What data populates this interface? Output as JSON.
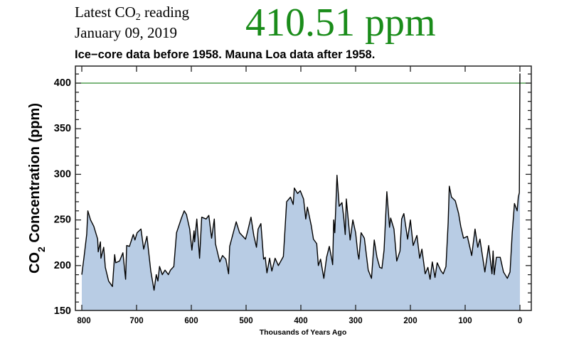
{
  "header": {
    "latest_parts": [
      "Latest CO",
      "2",
      " reading"
    ],
    "date": "January 09, 2019",
    "reading": "410.51 ppm",
    "reading_color": "#1a8c1a",
    "subtitle": "Ice−core data before 1958. Mauna Loa data after 1958."
  },
  "chart_data": {
    "type": "area",
    "title": "",
    "xlabel": "Thousands of Years Ago",
    "ylabel_parts": [
      "CO",
      "2",
      " Concentration (ppm)"
    ],
    "xlim": [
      800,
      0
    ],
    "ylim": [
      150,
      419
    ],
    "x_reversed": true,
    "x_ticks": [
      "800",
      "700",
      "600",
      "500",
      "400",
      "300",
      "200",
      "100",
      "0"
    ],
    "y_ticks": [
      "150",
      "200",
      "250",
      "300",
      "350",
      "400"
    ],
    "grid": false,
    "reference_line": {
      "y": 400,
      "color": "#2e8b2e"
    },
    "fill_color": "#b8cce4",
    "line_color": "#000000",
    "series": [
      {
        "x": [
          800,
          796,
          791,
          789,
          784,
          778,
          771,
          770,
          766,
          765,
          760,
          757,
          751,
          744,
          740,
          738,
          731,
          725,
          720,
          718,
          713,
          706,
          703,
          699,
          692,
          687,
          681,
          674,
          668,
          664,
          661,
          658,
          653,
          648,
          642,
          638,
          632,
          627,
          618,
          613,
          609,
          603,
          599,
          595,
          594,
          590,
          585,
          581,
          573,
          568,
          563,
          558,
          556,
          548,
          543,
          537,
          532,
          530,
          518,
          512,
          501,
          497,
          491,
          486,
          481,
          478,
          473,
          468,
          465,
          462,
          457,
          453,
          447,
          441,
          432,
          430,
          426,
          419,
          414,
          412,
          406,
          401,
          395,
          391,
          388,
          381,
          377,
          371,
          368,
          364,
          358,
          353,
          348,
          343,
          342,
          340,
          338,
          334,
          330,
          325,
          322,
          319,
          317,
          310,
          305,
          300,
          296,
          294,
          290,
          284,
          277,
          271,
          266,
          261,
          256,
          252,
          248,
          243,
          238,
          236,
          230,
          225,
          219,
          216,
          212,
          205,
          200,
          195,
          188,
          183,
          179,
          173,
          168,
          164,
          160,
          155,
          151,
          144,
          140,
          135,
          131,
          129,
          125,
          118,
          112,
          108,
          103,
          96,
          88,
          82,
          77,
          73,
          64,
          57,
          51,
          49,
          47,
          43,
          36,
          30,
          23,
          18,
          14,
          10,
          5,
          3,
          1,
          0
        ],
        "y": [
          190,
          209,
          234,
          260,
          250,
          243,
          229,
          215,
          226,
          208,
          220,
          198,
          183,
          177,
          212,
          203,
          205,
          214,
          185,
          222,
          221,
          234,
          228,
          236,
          240,
          218,
          232,
          194,
          173,
          190,
          183,
          199,
          190,
          195,
          190,
          195,
          199,
          236,
          252,
          260,
          256,
          240,
          217,
          238,
          226,
          251,
          208,
          253,
          251,
          255,
          230,
          251,
          224,
          204,
          211,
          207,
          191,
          221,
          248,
          236,
          229,
          238,
          253,
          233,
          220,
          240,
          246,
          207,
          209,
          192,
          208,
          194,
          208,
          200,
          210,
          229,
          270,
          275,
          267,
          285,
          279,
          282,
          273,
          251,
          264,
          244,
          229,
          224,
          200,
          207,
          186,
          209,
          221,
          205,
          201,
          250,
          236,
          299,
          265,
          269,
          254,
          234,
          273,
          228,
          250,
          236,
          213,
          207,
          236,
          230,
          195,
          186,
          228,
          209,
          198,
          197,
          217,
          281,
          242,
          252,
          240,
          205,
          216,
          251,
          257,
          229,
          250,
          222,
          233,
          208,
          218,
          191,
          198,
          185,
          204,
          187,
          203,
          194,
          191,
          199,
          247,
          287,
          275,
          271,
          257,
          243,
          230,
          232,
          211,
          240,
          220,
          229,
          193,
          222,
          191,
          216,
          190,
          209,
          209,
          193,
          186,
          193,
          236,
          268,
          260,
          275,
          280,
          410.51
        ]
      }
    ]
  }
}
